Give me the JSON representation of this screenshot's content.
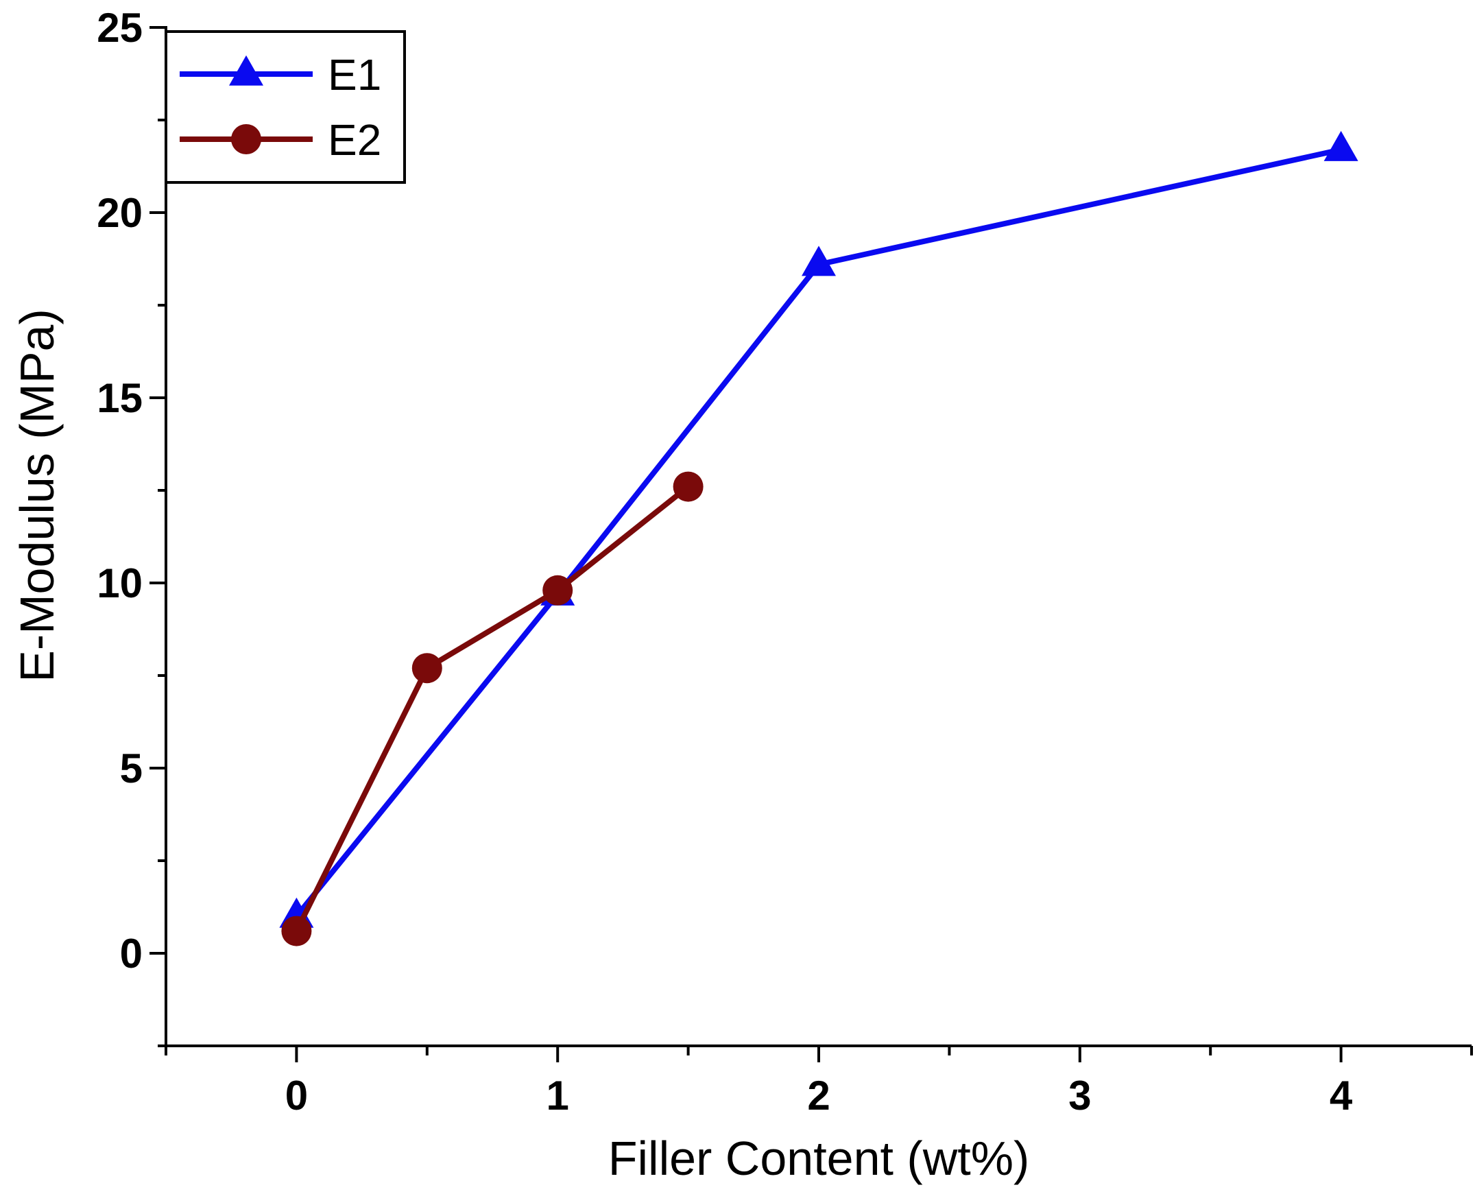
{
  "chart_data": {
    "type": "line",
    "title": "",
    "xlabel": "Filler Content (wt%)",
    "ylabel": "E-Modulus (MPa)",
    "xlim": [
      -0.5,
      4.5
    ],
    "ylim": [
      -2.5,
      25
    ],
    "x_ticks": [
      {
        "value": 0,
        "label": "0"
      },
      {
        "value": 0.5,
        "label": ""
      },
      {
        "value": 1,
        "label": "1"
      },
      {
        "value": 1.5,
        "label": ""
      },
      {
        "value": 2,
        "label": "2"
      },
      {
        "value": 2.5,
        "label": ""
      },
      {
        "value": 3,
        "label": "3"
      },
      {
        "value": 3.5,
        "label": ""
      },
      {
        "value": 4,
        "label": "4"
      }
    ],
    "y_ticks": [
      {
        "value": 0,
        "label": "0"
      },
      {
        "value": 5,
        "label": "5"
      },
      {
        "value": 10,
        "label": "10"
      },
      {
        "value": 15,
        "label": "15"
      },
      {
        "value": 20,
        "label": "20"
      },
      {
        "value": 25,
        "label": "25"
      }
    ],
    "grid": false,
    "legend_position": "top-left",
    "series": [
      {
        "name": "E1",
        "color": "#0a0af0",
        "marker": "triangle",
        "points": [
          {
            "x": 0,
            "y": 1.0
          },
          {
            "x": 1,
            "y": 9.7
          },
          {
            "x": 2,
            "y": 18.6
          },
          {
            "x": 4,
            "y": 21.7
          }
        ]
      },
      {
        "name": "E2",
        "color": "#7a0a0a",
        "marker": "circle",
        "points": [
          {
            "x": 0,
            "y": 0.6
          },
          {
            "x": 0.5,
            "y": 7.7
          },
          {
            "x": 1,
            "y": 9.8
          },
          {
            "x": 1.5,
            "y": 12.6
          }
        ]
      }
    ]
  }
}
